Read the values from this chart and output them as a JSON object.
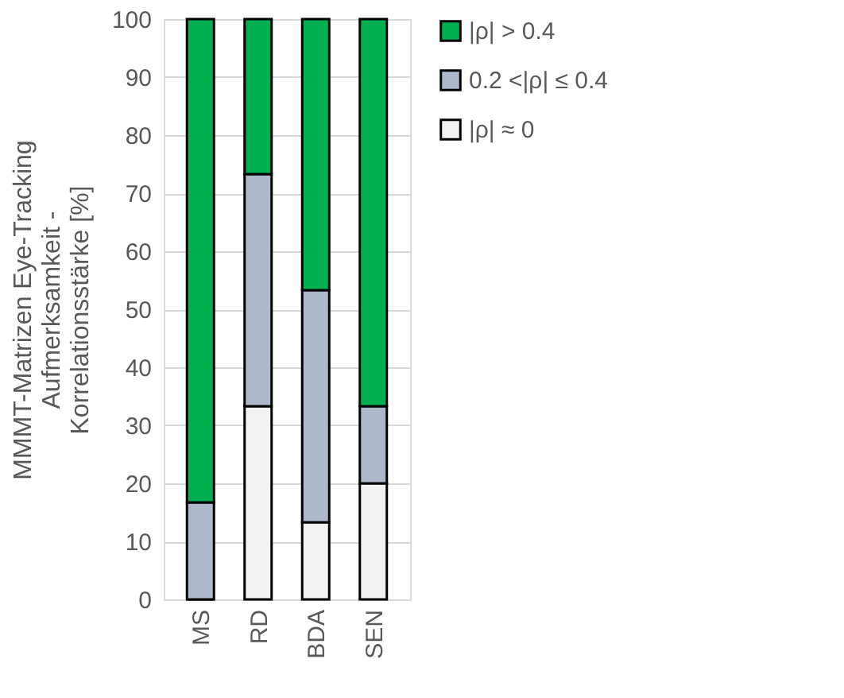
{
  "chart_data": {
    "type": "bar",
    "stacked": true,
    "ylabel": "MMMT-Matrizen Eye-Tracking\nAufmerksamkeit -\nKorrelationsstärke [%]",
    "categories": [
      "MS",
      "RD",
      "BDA",
      "SEN"
    ],
    "series": [
      {
        "name": "|ρ| ≈ 0",
        "color": "#f2f2f2",
        "values": [
          0,
          33.3,
          13.3,
          20
        ]
      },
      {
        "name": "0.2 <|ρ| ≤ 0.4",
        "color": "#adb9ca",
        "values": [
          16.7,
          40,
          40,
          13.3
        ]
      },
      {
        "name": "|ρ| > 0.4",
        "color": "#00b050",
        "values": [
          83.3,
          26.7,
          46.7,
          66.7
        ]
      }
    ],
    "ylim": [
      0,
      100
    ],
    "yticks": [
      0,
      10,
      20,
      30,
      40,
      50,
      60,
      70,
      80,
      90,
      100
    ],
    "grid": "y",
    "legend": "right"
  }
}
